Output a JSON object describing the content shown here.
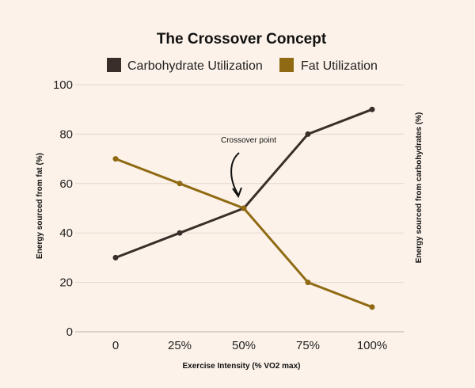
{
  "chart_data": {
    "type": "line",
    "title": "The Crossover Concept",
    "categories": [
      "0",
      "25%",
      "50%",
      "75%",
      "100%"
    ],
    "series": [
      {
        "name": "Carbohydrate Utilization",
        "values": [
          30,
          40,
          50,
          80,
          90
        ],
        "color": "#3a2e2a"
      },
      {
        "name": "Fat Utilization",
        "values": [
          70,
          60,
          50,
          20,
          10
        ],
        "color": "#8f6a12"
      }
    ],
    "xlabel": "Exercise Intensity (% VO2 max)",
    "ylabel": "Energy sourced from fat (%)",
    "ylabel_right": "Energy sourced from carbohydrates (%)",
    "ylim": [
      0,
      100
    ],
    "yticks": [
      "0",
      "20",
      "40",
      "60",
      "80",
      "100"
    ],
    "grid": true,
    "legend": "top",
    "annotation": {
      "text": "Crossover point",
      "category": "50%",
      "value": 50
    }
  }
}
